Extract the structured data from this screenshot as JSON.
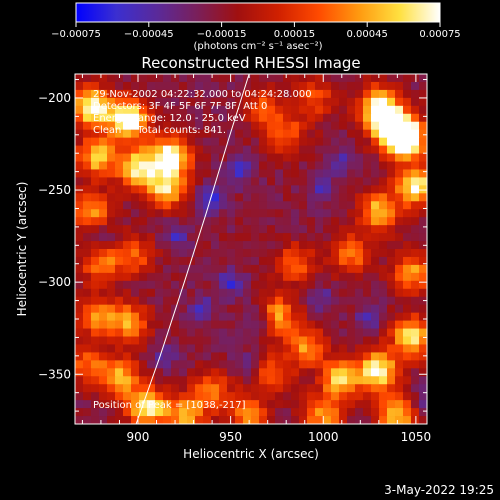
{
  "chart_data": {
    "type": "heatmap",
    "title": "Reconstructed RHESSI Image",
    "xlabel": "Heliocentric X (arcsec)",
    "ylabel": "Heliocentric Y (arcsec)",
    "xlim": [
      866,
      1056
    ],
    "ylim": [
      -377,
      -187
    ],
    "xticks": [
      {
        "value": 900,
        "label": "900"
      },
      {
        "value": 950,
        "label": "950"
      },
      {
        "value": 1000,
        "label": "1000"
      },
      {
        "value": 1050,
        "label": "1050"
      }
    ],
    "yticks": [
      {
        "value": -200,
        "label": "−200"
      },
      {
        "value": -250,
        "label": "−250"
      },
      {
        "value": -300,
        "label": "−300"
      },
      {
        "value": -350,
        "label": "−350"
      }
    ],
    "colorbar": {
      "min": -0.00075,
      "max": 0.00075,
      "units": "(photons cm⁻² s⁻¹ asec⁻²)",
      "ticks": [
        {
          "value": -0.00075,
          "label": "−0.00075"
        },
        {
          "value": -0.00045,
          "label": "−0.00045"
        },
        {
          "value": -0.00015,
          "label": "−0.00015"
        },
        {
          "value": 0.00015,
          "label": "0.00015"
        },
        {
          "value": 0.00045,
          "label": "0.00045"
        },
        {
          "value": 0.00075,
          "label": "0.00075"
        }
      ],
      "colormap": [
        "#0000ff",
        "#3b2fd0",
        "#5a2a9a",
        "#7a1f5a",
        "#a01010",
        "#d02000",
        "#ff4a00",
        "#ff9a10",
        "#ffe040",
        "#ffffff"
      ]
    },
    "annotations": [
      "29-Nov-2002 04:22:32.000 to 04:24:28.000",
      "Detectors: 3F 4F 5F 6F 7F 8F, Att 0",
      "Energy Range: 12.0 - 25.0 keV",
      "Clean     Total counts: 841."
    ],
    "peak_label": "Position of Peak = [1038,-217]",
    "peak": [
      1038,
      -217
    ],
    "limb_curve": [
      [
        899,
        -377
      ],
      [
        912,
        -340
      ],
      [
        925,
        -300
      ],
      [
        937,
        -262
      ],
      [
        949,
        -222
      ],
      [
        960,
        -187
      ]
    ],
    "hotspots": [
      [
        875,
        -205,
        0.9
      ],
      [
        895,
        -212,
        1.0
      ],
      [
        878,
        -232,
        0.7
      ],
      [
        900,
        -238,
        0.8
      ],
      [
        918,
        -232,
        0.95
      ],
      [
        915,
        -250,
        0.7
      ],
      [
        875,
        -262,
        0.6
      ],
      [
        880,
        -290,
        0.5
      ],
      [
        898,
        -285,
        0.45
      ],
      [
        878,
        -318,
        0.55
      ],
      [
        895,
        -322,
        0.6
      ],
      [
        872,
        -345,
        0.45
      ],
      [
        890,
        -352,
        0.65
      ],
      [
        905,
        -368,
        0.8
      ],
      [
        925,
        -372,
        0.6
      ],
      [
        940,
        -360,
        0.5
      ],
      [
        968,
        -205,
        0.4
      ],
      [
        980,
        -220,
        0.45
      ],
      [
        995,
        -200,
        0.4
      ],
      [
        1030,
        -205,
        0.9
      ],
      [
        1045,
        -222,
        0.95
      ],
      [
        1038,
        -217,
        1.0
      ],
      [
        1050,
        -248,
        0.85
      ],
      [
        1030,
        -262,
        0.7
      ],
      [
        1015,
        -285,
        0.5
      ],
      [
        985,
        -290,
        0.45
      ],
      [
        975,
        -318,
        0.6
      ],
      [
        990,
        -335,
        0.55
      ],
      [
        1010,
        -352,
        0.75
      ],
      [
        1030,
        -348,
        0.85
      ],
      [
        1048,
        -330,
        0.8
      ],
      [
        1000,
        -372,
        0.6
      ],
      [
        1040,
        -372,
        0.7
      ],
      [
        960,
        -372,
        0.5
      ],
      [
        972,
        -350,
        0.45
      ],
      [
        1048,
        -295,
        0.6
      ]
    ],
    "coldspots": [
      [
        940,
        -255,
        0.7
      ],
      [
        955,
        -240,
        0.6
      ],
      [
        950,
        -300,
        0.6
      ],
      [
        935,
        -315,
        0.5
      ],
      [
        965,
        -320,
        0.55
      ],
      [
        1000,
        -250,
        0.5
      ],
      [
        1010,
        -235,
        0.45
      ],
      [
        880,
        -275,
        0.45
      ],
      [
        920,
        -275,
        0.5
      ],
      [
        1000,
        -310,
        0.4
      ],
      [
        960,
        -345,
        0.45
      ],
      [
        1055,
        -365,
        0.5
      ],
      [
        915,
        -340,
        0.4
      ],
      [
        1025,
        -320,
        0.45
      ]
    ]
  },
  "footer": {
    "timestamp": "3-May-2022 19:25"
  }
}
